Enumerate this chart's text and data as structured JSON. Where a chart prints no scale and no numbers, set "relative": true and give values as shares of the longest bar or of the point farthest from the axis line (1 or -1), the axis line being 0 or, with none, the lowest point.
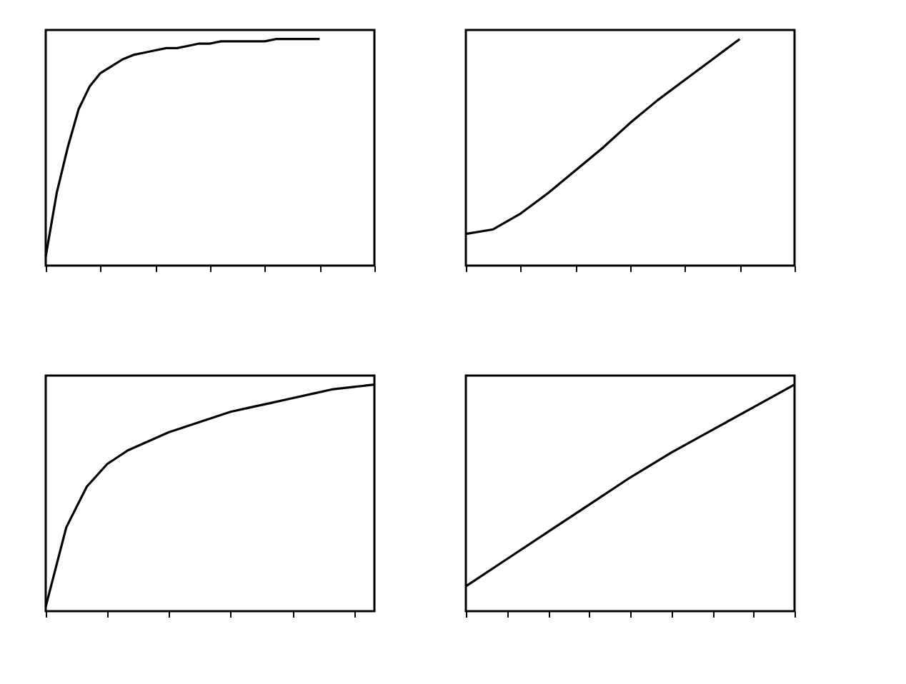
{
  "chart_data": [
    {
      "type": "line",
      "relative": true,
      "tick_labels": false,
      "categories": [
        null,
        null,
        null,
        null,
        null,
        null,
        null,
        null,
        null,
        null,
        null,
        null,
        null,
        null,
        null,
        null,
        null,
        null,
        null,
        null,
        null,
        null,
        null,
        null,
        null,
        null,
        null,
        null,
        null,
        null,
        null
      ],
      "series": [
        {
          "color": "#000000",
          "values": [
            0.04,
            0.32,
            0.52,
            0.69,
            0.79,
            0.85,
            0.88,
            0.91,
            0.93,
            0.94,
            0.95,
            0.96,
            0.96,
            0.97,
            0.98,
            0.98,
            0.99,
            0.99,
            0.99,
            0.99,
            0.99,
            1.0,
            1.0,
            1.0,
            1.0,
            1.0,
            null,
            null,
            null,
            null,
            null
          ]
        }
      ]
    },
    {
      "type": "line",
      "relative": true,
      "tick_labels": false,
      "categories": [
        null,
        null,
        null,
        null,
        null,
        null,
        null,
        null,
        null,
        null,
        null,
        null,
        null
      ],
      "series": [
        {
          "color": "#000000",
          "values": [
            0.14,
            0.16,
            0.23,
            0.32,
            0.42,
            0.52,
            0.63,
            0.73,
            0.82,
            0.91,
            1.0,
            null,
            null
          ]
        }
      ]
    },
    {
      "type": "line",
      "relative": true,
      "tick_labels": false,
      "categories": [
        null,
        null,
        null,
        null,
        null,
        null,
        null,
        null,
        null,
        null,
        null,
        null,
        null,
        null,
        null,
        null,
        null
      ],
      "series": [
        {
          "color": "#000000",
          "values": [
            0.02,
            0.37,
            0.55,
            0.65,
            0.71,
            0.75,
            0.79,
            0.82,
            0.85,
            0.88,
            0.9,
            0.92,
            0.94,
            0.96,
            0.98,
            0.99,
            1.0
          ]
        }
      ]
    },
    {
      "type": "line",
      "relative": true,
      "tick_labels": false,
      "categories": [
        null,
        null,
        null,
        null,
        null,
        null,
        null,
        null,
        null
      ],
      "series": [
        {
          "color": "#000000",
          "values": [
            0.11,
            0.23,
            0.35,
            0.47,
            0.59,
            0.7,
            0.8,
            0.9,
            1.0
          ]
        }
      ]
    }
  ]
}
